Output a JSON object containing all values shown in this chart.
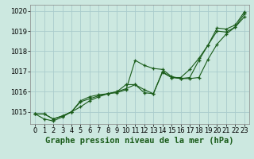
{
  "background_color": "#cce8e0",
  "grid_color": "#aacccc",
  "line_color": "#1a5c1a",
  "xlabel": "Graphe pression niveau de la mer (hPa)",
  "xlabel_fontsize": 7.5,
  "tick_fontsize": 6,
  "xlim": [
    -0.5,
    23.5
  ],
  "ylim": [
    1014.4,
    1020.3
  ],
  "yticks": [
    1015,
    1016,
    1017,
    1018,
    1019,
    1020
  ],
  "xticks": [
    0,
    1,
    2,
    3,
    4,
    5,
    6,
    7,
    8,
    9,
    10,
    11,
    12,
    13,
    14,
    15,
    16,
    17,
    18,
    19,
    20,
    21,
    22,
    23
  ],
  "series": [
    [
      1014.9,
      1014.9,
      1014.65,
      1014.8,
      1015.0,
      1015.55,
      1015.75,
      1015.85,
      1015.9,
      1016.0,
      1016.15,
      1016.35,
      1015.95,
      1015.9,
      1016.95,
      1016.7,
      1016.65,
      1016.7,
      1017.55,
      1018.3,
      1019.15,
      1019.1,
      1019.3,
      1019.95
    ],
    [
      1014.9,
      1014.65,
      1014.55,
      1014.75,
      1015.0,
      1015.25,
      1015.55,
      1015.75,
      1015.9,
      1015.95,
      1016.1,
      1017.55,
      1017.3,
      1017.15,
      1017.1,
      1016.75,
      1016.65,
      1016.65,
      1016.7,
      1017.6,
      1018.35,
      1018.85,
      1019.2,
      1019.85
    ],
    [
      1014.9,
      1014.9,
      1014.65,
      1014.8,
      1015.0,
      1015.5,
      1015.65,
      1015.8,
      1015.9,
      1016.0,
      1016.35,
      1016.35,
      1016.1,
      1015.9,
      1017.0,
      1016.7,
      1016.7,
      1017.1,
      1017.65,
      1018.3,
      1019.0,
      1018.95,
      1019.2,
      1019.7
    ]
  ]
}
